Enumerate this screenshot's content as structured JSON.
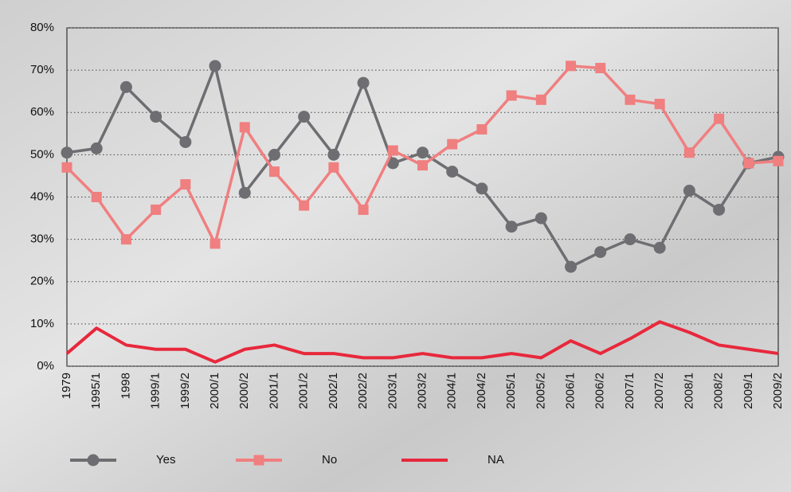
{
  "chart_data": {
    "type": "line",
    "categories": [
      "1979",
      "1995/1",
      "1998",
      "1999/1",
      "1999/2",
      "2000/1",
      "2000/2",
      "2001/1",
      "2001/2",
      "2002/1",
      "2002/2",
      "2003/1",
      "2003/2",
      "2004/1",
      "2004/2",
      "2005/1",
      "2005/2",
      "2006/1",
      "2006/2",
      "2007/1",
      "2007/2",
      "2008/1",
      "2008/2",
      "2009/1",
      "2009/2"
    ],
    "series": [
      {
        "name": "Yes",
        "color": "#6e6e72",
        "marker": "circle",
        "values": [
          50.5,
          51.5,
          66,
          59,
          53,
          71,
          41,
          50,
          59,
          50,
          67,
          48,
          50.5,
          46,
          42,
          33,
          35,
          23.5,
          27,
          30,
          28,
          41.5,
          37,
          48,
          49.5
        ]
      },
      {
        "name": "No",
        "color": "#f07f80",
        "marker": "square",
        "values": [
          47,
          40,
          30,
          37,
          43,
          29,
          56.5,
          46,
          38,
          47,
          37,
          51,
          47.5,
          52.5,
          56,
          64,
          63,
          71,
          70.5,
          63,
          62,
          50.5,
          58.5,
          48,
          48.5
        ]
      },
      {
        "name": "NA",
        "color": "#e8283c",
        "marker": "none",
        "values": [
          3,
          9,
          5,
          4,
          4,
          1,
          4,
          5,
          3,
          3,
          2,
          2,
          3,
          2,
          2,
          3,
          2,
          6,
          3,
          6.5,
          10.5,
          8,
          5,
          4,
          3
        ]
      }
    ],
    "ylim": [
      0,
      80
    ],
    "yticks": [
      {
        "value": 0,
        "label": "0%"
      },
      {
        "value": 10,
        "label": "10%"
      },
      {
        "value": 20,
        "label": "20%"
      },
      {
        "value": 30,
        "label": "30%"
      },
      {
        "value": 40,
        "label": "40%"
      },
      {
        "value": 50,
        "label": "50%"
      },
      {
        "value": 60,
        "label": "60%"
      },
      {
        "value": 70,
        "label": "70%"
      },
      {
        "value": 80,
        "label": "80%"
      }
    ],
    "grid": true
  }
}
